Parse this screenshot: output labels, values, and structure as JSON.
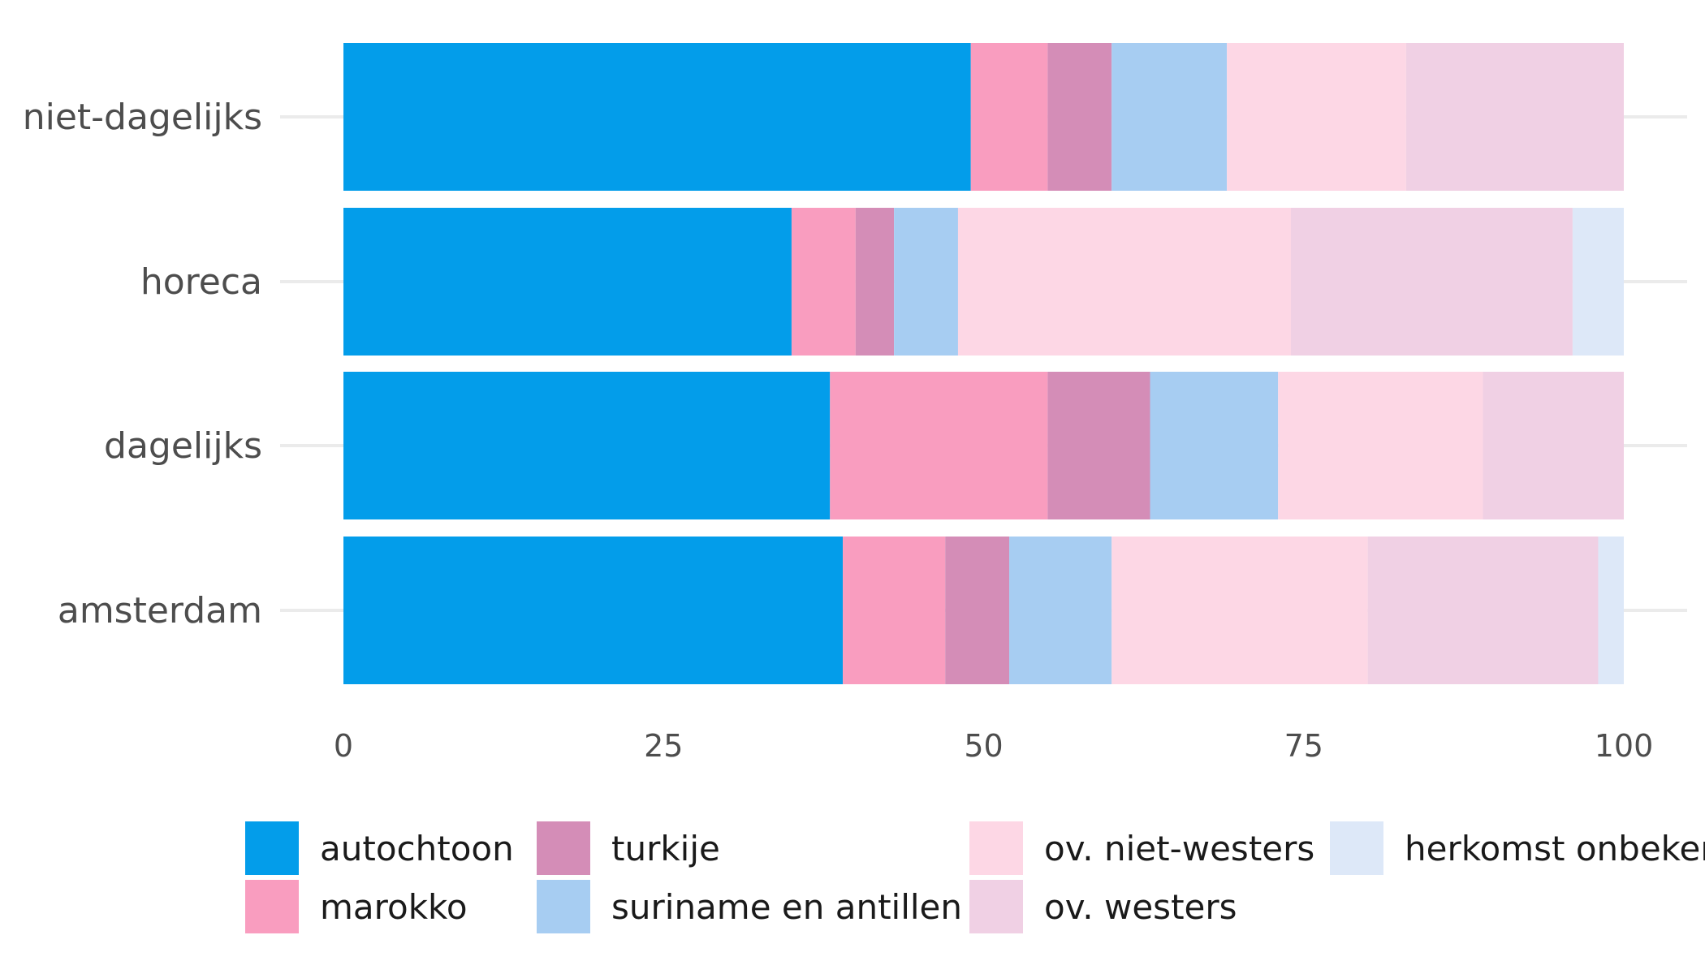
{
  "chart_data": {
    "type": "bar",
    "orientation": "horizontal",
    "stacked": true,
    "title": "",
    "xlabel": "",
    "ylabel": "",
    "xlim": [
      0,
      100
    ],
    "x_ticks": [
      "0",
      "25",
      "50",
      "75",
      "100"
    ],
    "categories": [
      "niet-dagelijks",
      "horeca",
      "dagelijks",
      "amsterdam"
    ],
    "series": [
      {
        "name": "autochtoon",
        "color": "#039dea",
        "values": [
          49,
          35,
          38,
          39
        ]
      },
      {
        "name": "marokko",
        "color": "#f99dbf",
        "values": [
          6,
          5,
          17,
          8
        ]
      },
      {
        "name": "turkije",
        "color": "#d48db7",
        "values": [
          5,
          3,
          8,
          5
        ]
      },
      {
        "name": "suriname en antillen",
        "color": "#a7cdf2",
        "values": [
          9,
          5,
          10,
          8
        ]
      },
      {
        "name": "ov. niet-westers",
        "color": "#fdd7e5",
        "values": [
          14,
          26,
          16,
          20
        ]
      },
      {
        "name": "ov. westers",
        "color": "#f0d0e4",
        "values": [
          17,
          22,
          11,
          18
        ]
      },
      {
        "name": "herkomst onbekend",
        "color": "#dde8f8",
        "values": [
          0,
          4,
          0,
          2
        ]
      }
    ],
    "grid": true,
    "legend_position": "bottom"
  }
}
